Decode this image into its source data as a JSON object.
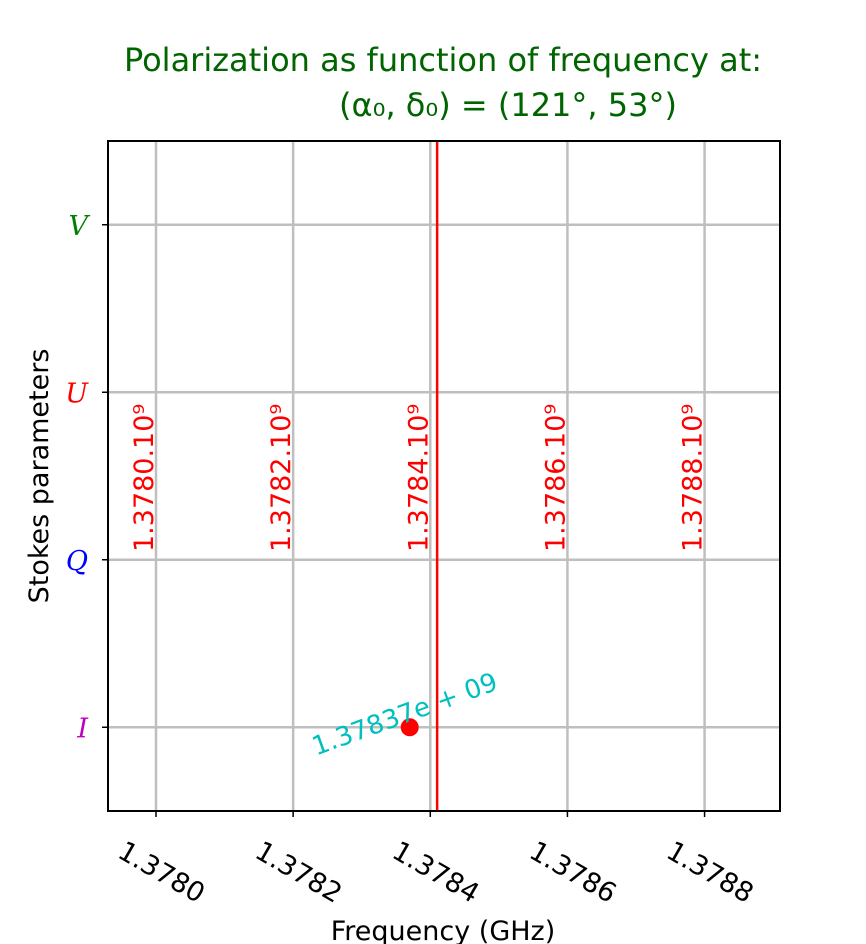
{
  "chart_data": {
    "type": "scatter",
    "title_line1": "Polarization as function of frequency at:",
    "title_line2": "(α₀, δ₀) = (121°, 53°)",
    "xlabel": "Frequency (GHz)",
    "ylabel": "Stokes parameters",
    "xlim": [
      1.37793,
      1.37891
    ],
    "x_ticks": [
      "1.3780",
      "1.3782",
      "1.3784",
      "1.3786",
      "1.3788"
    ],
    "x_tick_values": [
      1.378,
      1.3782,
      1.3784,
      1.3786,
      1.3788
    ],
    "y_ticks": [
      {
        "label": "I",
        "value": 0,
        "color": "#bf00bf"
      },
      {
        "label": "Q",
        "value": 1,
        "color": "#0000ff"
      },
      {
        "label": "U",
        "value": 2,
        "color": "#ff0000"
      },
      {
        "label": "V",
        "value": 3,
        "color": "#008000"
      }
    ],
    "ylim": [
      -0.5,
      3.5
    ],
    "grid": true,
    "vline": {
      "x": 1.37841,
      "color": "#ff0000"
    },
    "frequency_labels": [
      {
        "x": 1.378,
        "text": "1.3780.10⁹"
      },
      {
        "x": 1.3782,
        "text": "1.3782.10⁹"
      },
      {
        "x": 1.3784,
        "text": "1.3784.10⁹"
      },
      {
        "x": 1.3786,
        "text": "1.3786.10⁹"
      },
      {
        "x": 1.3788,
        "text": "1.3788.10⁹"
      }
    ],
    "points": [
      {
        "x": 1.37837,
        "y": 0,
        "color": "#ff0000",
        "label": "1.37837e + 09",
        "label_color": "#00bfbf"
      }
    ]
  }
}
